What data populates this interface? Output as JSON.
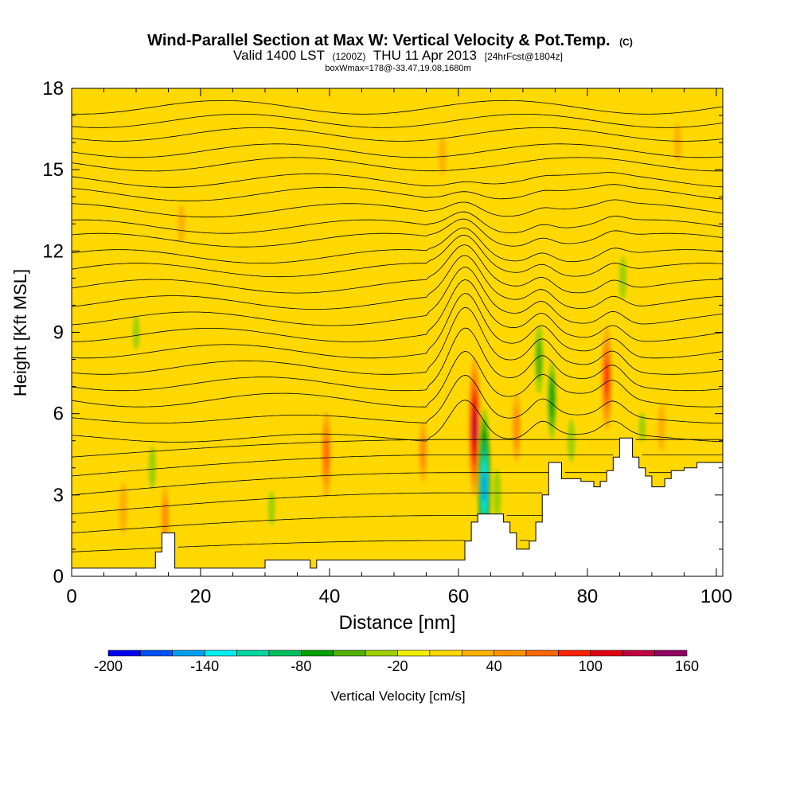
{
  "chart_data": {
    "type": "heatmap",
    "title": "Wind-Parallel Section at Max W: Vertical Velocity & Pot.Temp.",
    "title_tag": "(C)",
    "subtitle_parts": [
      "Valid 1400 LST",
      "(1200Z)",
      "THU 11 Apr 2013",
      "[24hrFcst@1804z]"
    ],
    "subtitle2": "boxWmax=178@-33.47,19.08,1680m",
    "xlabel": "Distance [nm]",
    "ylabel": "Height [Kft MSL]",
    "xlim": [
      0,
      101
    ],
    "ylim": [
      0,
      18
    ],
    "x_ticks": [
      0,
      20,
      40,
      60,
      80,
      100
    ],
    "y_ticks": [
      0,
      3,
      6,
      9,
      12,
      15,
      18
    ],
    "colorbar": {
      "label": "Vertical Velocity [cm/s]",
      "tick_labels": [
        "-200",
        "-140",
        "-80",
        "-20",
        "40",
        "100",
        "160"
      ],
      "tick_values": [
        -200,
        -140,
        -80,
        -20,
        40,
        100,
        160
      ],
      "bounds": [
        -200,
        -180,
        -160,
        -140,
        -120,
        -100,
        -80,
        -60,
        -40,
        -20,
        0,
        20,
        40,
        60,
        80,
        100,
        120,
        140,
        160
      ],
      "colors": [
        "#0000f0",
        "#0050f8",
        "#00a0f0",
        "#00f0f0",
        "#00d8a0",
        "#00c060",
        "#00a000",
        "#50b000",
        "#a0d000",
        "#f0f000",
        "#ffd800",
        "#ffb000",
        "#ff9000",
        "#ff6800",
        "#ff2000",
        "#e00010",
        "#c00040",
        "#900060"
      ]
    },
    "background_value_cm_s": 5,
    "velocity_features": [
      {
        "x": 62.5,
        "y": 5.5,
        "value": 150,
        "note": "strong updraft"
      },
      {
        "x": 64.0,
        "y": 3.3,
        "value": -170,
        "note": "strong downdraft"
      },
      {
        "x": 83.0,
        "y": 7.3,
        "value": 110
      },
      {
        "x": 39.5,
        "y": 4.5,
        "value": 90
      },
      {
        "x": 54.5,
        "y": 4.6,
        "value": 60
      },
      {
        "x": 69.0,
        "y": 5.5,
        "value": 70
      },
      {
        "x": 72.5,
        "y": 8.0,
        "value": -70
      },
      {
        "x": 74.5,
        "y": 6.5,
        "value": -80
      },
      {
        "x": 77.5,
        "y": 5.0,
        "value": -40
      },
      {
        "x": 12.5,
        "y": 4.0,
        "value": -40
      },
      {
        "x": 10.0,
        "y": 9.0,
        "value": -30
      },
      {
        "x": 85.5,
        "y": 11.0,
        "value": -40
      },
      {
        "x": 66.0,
        "y": 3.0,
        "value": -50
      },
      {
        "x": 88.5,
        "y": 5.5,
        "value": -25
      },
      {
        "x": 91.5,
        "y": 5.5,
        "value": 45
      },
      {
        "x": 14.5,
        "y": 2.2,
        "value": 60
      },
      {
        "x": 8.0,
        "y": 2.5,
        "value": 50
      },
      {
        "x": 31.0,
        "y": 2.5,
        "value": -30
      },
      {
        "x": 17.0,
        "y": 13.0,
        "value": 35
      },
      {
        "x": 57.5,
        "y": 15.5,
        "value": 35
      },
      {
        "x": 94.0,
        "y": 16.0,
        "value": 35
      }
    ],
    "theta_isentrope_heights_at_x0_kft": [
      0.9,
      1.6,
      2.3,
      3.0,
      3.7,
      4.4,
      5.1,
      5.8,
      6.5,
      7.1,
      7.7,
      8.3,
      8.9,
      9.5,
      10.1,
      10.7,
      11.3,
      11.8,
      12.4,
      12.9,
      13.5,
      14.1,
      14.6,
      15.2,
      15.7,
      16.3,
      16.8,
      17.3
    ],
    "terrain": {
      "x": [
        0,
        11,
        12,
        13,
        14,
        15,
        16,
        18,
        20,
        29,
        30,
        36,
        37,
        38,
        39,
        40,
        60,
        61,
        62,
        63,
        64,
        65,
        66,
        67,
        68,
        69,
        70,
        71,
        72,
        73,
        74,
        75,
        76,
        77,
        78,
        79,
        80,
        81,
        82,
        83,
        84,
        85,
        86,
        87,
        88,
        89,
        90,
        91,
        92,
        93,
        94,
        95,
        96,
        97,
        98,
        99,
        100,
        101
      ],
      "height_kft": [
        0.3,
        0.3,
        0.3,
        0.9,
        1.6,
        1.6,
        0.3,
        0.3,
        0.3,
        0.3,
        0.6,
        0.6,
        0.3,
        0.6,
        0.6,
        0.6,
        0.6,
        1.3,
        2.0,
        2.3,
        2.3,
        2.3,
        2.3,
        2.0,
        1.6,
        1.0,
        1.0,
        1.3,
        2.0,
        3.0,
        4.2,
        4.2,
        3.6,
        3.6,
        3.6,
        3.5,
        3.5,
        3.3,
        3.5,
        3.9,
        4.4,
        5.1,
        5.1,
        4.4,
        4.0,
        3.7,
        3.3,
        3.3,
        3.6,
        3.9,
        3.9,
        4.0,
        4.0,
        4.2,
        4.2,
        4.2,
        4.2,
        4.2
      ]
    }
  }
}
